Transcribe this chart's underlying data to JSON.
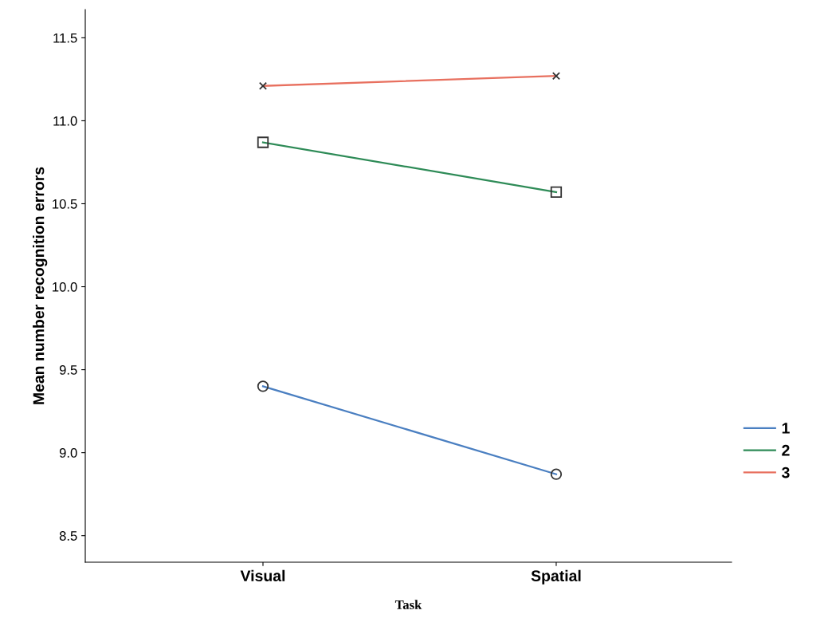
{
  "chart_data": {
    "type": "line",
    "xlabel": "Task",
    "ylabel": "Mean number recognition errors",
    "categories": [
      "Visual",
      "Spatial"
    ],
    "series": [
      {
        "name": "1",
        "color": "#4a7fc1",
        "marker": "circle",
        "values": [
          9.4,
          8.87
        ]
      },
      {
        "name": "2",
        "color": "#2e8b57",
        "marker": "square",
        "values": [
          10.87,
          10.57
        ]
      },
      {
        "name": "3",
        "color": "#e8705f",
        "marker": "cross",
        "values": [
          11.21,
          11.27
        ]
      }
    ],
    "ylim": [
      8.34,
      11.67
    ],
    "yticks": [
      8.5,
      {
        "value": 9,
        "label": "9.0"
      },
      9.5,
      {
        "value": 10,
        "label": "10.0"
      },
      10.5,
      {
        "value": 11,
        "label": "11.0"
      },
      11.5
    ],
    "grid": false,
    "legend": "right",
    "line_style": "solid"
  }
}
